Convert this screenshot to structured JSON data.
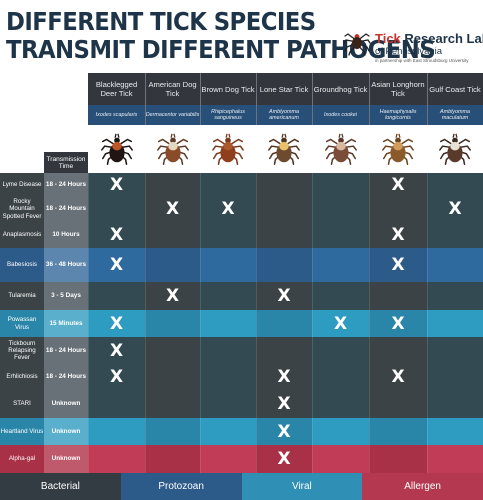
{
  "title": [
    "DIFFERENT TICK SPECIES",
    "TRANSMIT DIFFERENT PATHOGENS"
  ],
  "logo": {
    "line1_red": "Tick",
    "line1_rest": " Research Lab",
    "line2": "of Pennsylvania",
    "line3": "in partnership with East Stroudsburg University",
    "icon": "tick-logo-icon"
  },
  "transmission_header": "Transmission Time",
  "colors": {
    "Bacterial": "#333b43",
    "Protozoan": "#2c5b8a",
    "Viral": "#2f8fb4",
    "Allergen": "#b4384f"
  },
  "columns": [
    {
      "name": "Blacklegged Deer Tick",
      "sci": "Ixodes scapularis",
      "icon": "blacklegged-tick-icon"
    },
    {
      "name": "American Dog Tick",
      "sci": "Dermacentor variabilis",
      "icon": "american-dog-tick-icon"
    },
    {
      "name": "Brown Dog Tick",
      "sci": "Rhipicephalus sanguineus",
      "icon": "brown-dog-tick-icon"
    },
    {
      "name": "Lone Star Tick",
      "sci": "Amblyomma americanum",
      "icon": "lone-star-tick-icon"
    },
    {
      "name": "Groundhog Tick",
      "sci": "Ixodes cookei",
      "icon": "groundhog-tick-icon"
    },
    {
      "name": "Asian Longhorn Tick",
      "sci": "Haemaphysalis longicornis",
      "icon": "asian-longhorn-tick-icon"
    },
    {
      "name": "Gulf Coast Tick",
      "sci": "Amblyomma maculatum",
      "icon": "gulf-coast-tick-icon"
    }
  ],
  "rows": [
    {
      "disease": "Lyme Disease",
      "time": "18 - 24 Hours",
      "type": "Bacterial",
      "marks": [
        1,
        0,
        0,
        0,
        0,
        1,
        0
      ]
    },
    {
      "disease": "Rocky Mountain Spotted Fever",
      "time": "18 - 24 Hours",
      "type": "Bacterial",
      "marks": [
        0,
        1,
        1,
        0,
        0,
        0,
        1
      ]
    },
    {
      "disease": "Anaplasmosis",
      "time": "10 Hours",
      "type": "Bacterial",
      "marks": [
        1,
        0,
        0,
        0,
        0,
        1,
        0
      ]
    },
    {
      "disease": "Babesiosis",
      "time": "36 - 48 Hours",
      "type": "Protozoan",
      "marks": [
        1,
        0,
        0,
        0,
        0,
        1,
        0
      ]
    },
    {
      "disease": "Tularemia",
      "time": "3 - 5 Days",
      "type": "Bacterial",
      "marks": [
        0,
        1,
        0,
        1,
        0,
        0,
        0
      ]
    },
    {
      "disease": "Powassan Virus",
      "time": "15 Minutes",
      "type": "Viral",
      "marks": [
        1,
        0,
        0,
        0,
        1,
        1,
        0
      ]
    },
    {
      "disease": "Tickbourn Relapsing Fever",
      "time": "18 - 24 Hours",
      "type": "Bacterial",
      "marks": [
        1,
        0,
        0,
        0,
        0,
        0,
        0
      ]
    },
    {
      "disease": "Erhlichiosis",
      "time": "18 - 24 Hours",
      "type": "Bacterial",
      "marks": [
        1,
        0,
        0,
        1,
        0,
        1,
        0
      ]
    },
    {
      "disease": "STARI",
      "time": "Unknown",
      "type": "Bacterial",
      "marks": [
        0,
        0,
        0,
        1,
        0,
        0,
        0
      ]
    },
    {
      "disease": "Heartland Virus",
      "time": "Unknown",
      "type": "Viral",
      "marks": [
        0,
        0,
        0,
        1,
        0,
        0,
        0
      ]
    },
    {
      "disease": "Alpha-gal",
      "time": "Unknown",
      "type": "Allergen",
      "marks": [
        0,
        0,
        0,
        1,
        0,
        0,
        0
      ]
    }
  ],
  "mark_symbol": "X",
  "legend": [
    {
      "label": "Bacterial",
      "type": "Bacterial"
    },
    {
      "label": "Protozoan",
      "type": "Protozoan"
    },
    {
      "label": "Viral",
      "type": "Viral"
    },
    {
      "label": "Allergen",
      "type": "Allergen"
    }
  ]
}
